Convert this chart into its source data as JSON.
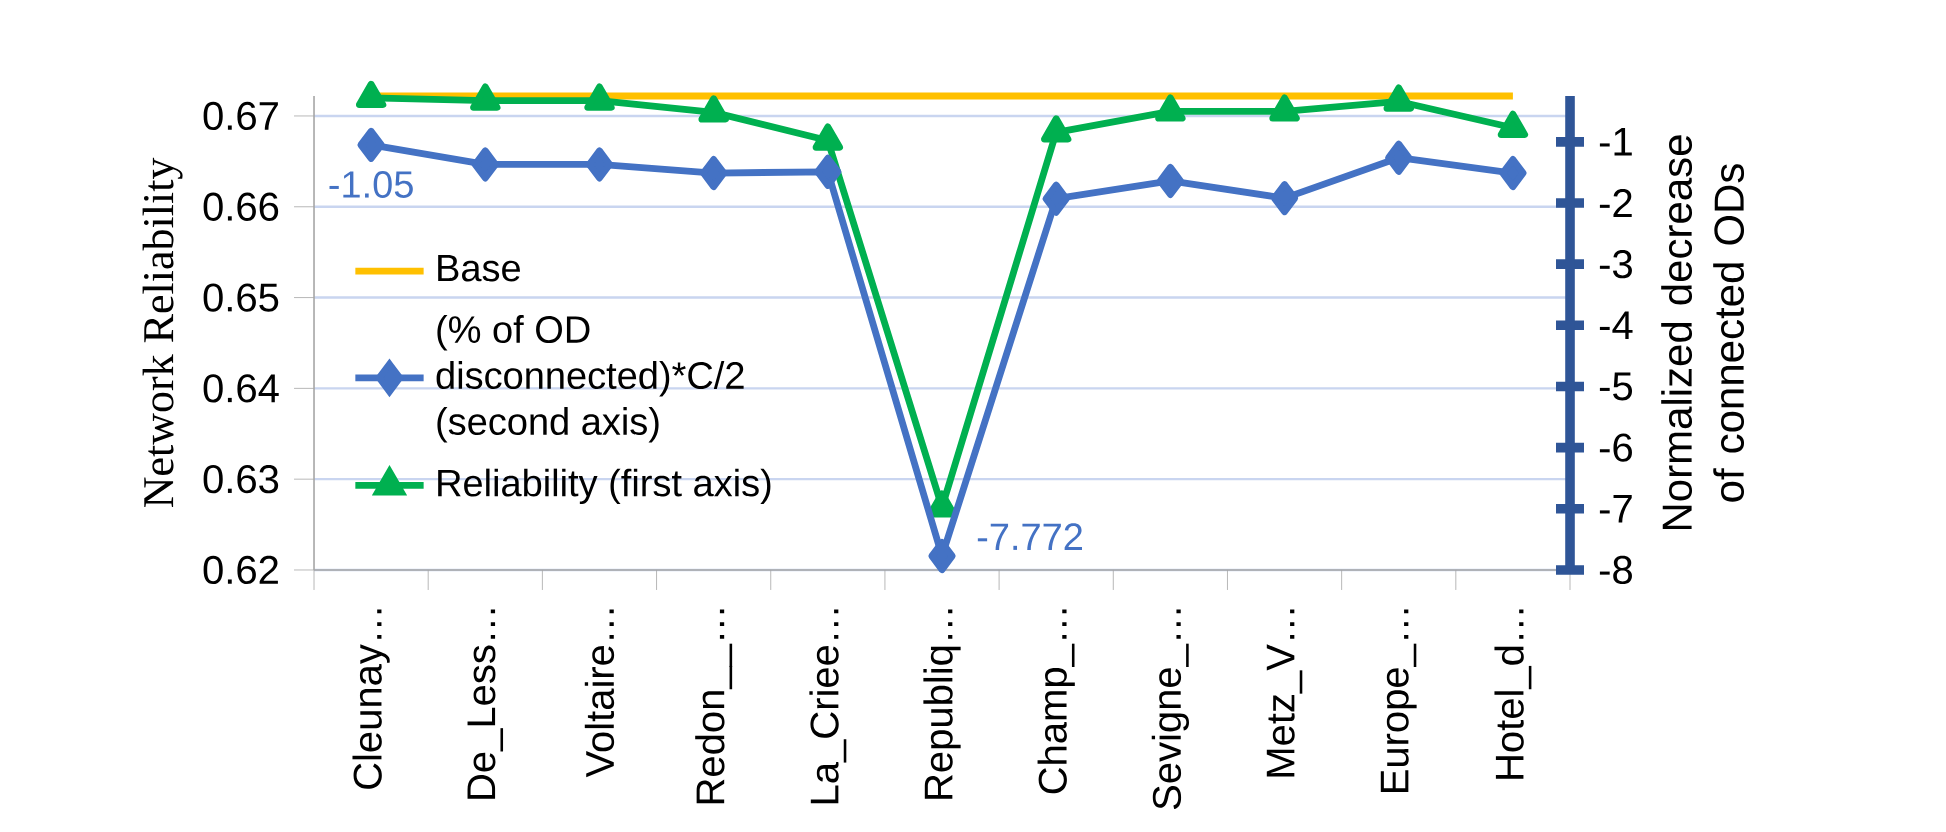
{
  "chart_data": {
    "type": "line",
    "categories": [
      "Cleunay…",
      "De_Less…",
      "Voltaire…",
      "Redon__…",
      "La_Criee…",
      "Republiq…",
      "Champ_…",
      "Sevigne_…",
      "Metz_V…",
      "Europe_…",
      "Hotel_d…"
    ],
    "ylabel": "Network Reliability",
    "y2label": "Normalized decrease  of connected ODs",
    "ylim": [
      0.62,
      0.6722
    ],
    "yticks": [
      0.62,
      0.63,
      0.64,
      0.65,
      0.66,
      0.67
    ],
    "y2lim": [
      -8,
      -0.25
    ],
    "y2ticks": [
      -8,
      -7,
      -6,
      -5,
      -4,
      -3,
      -2,
      -1
    ],
    "grid": "y",
    "legend": "left",
    "series": [
      {
        "name": "Base",
        "color": "#ffc000",
        "marker": "none",
        "values": [
          0.6722,
          0.6722,
          0.6722,
          0.6722,
          0.6722,
          0.6722,
          0.6722,
          0.6722,
          0.6722,
          0.6722,
          0.6722
        ]
      },
      {
        "name": "(% of OD disconnected)*C/2 (second axis)",
        "color": "#4472c4",
        "marker": "diamond",
        "axis": "y2",
        "values": [
          -1.05,
          -1.37,
          -1.37,
          -1.51,
          -1.49,
          -7.772,
          -1.93,
          -1.64,
          -1.92,
          -1.26,
          -1.51
        ],
        "value_labels": [
          "-1.05",
          null,
          null,
          null,
          null,
          "-7.772",
          null,
          null,
          null,
          null,
          null
        ]
      },
      {
        "name": "Reliability (first axis)",
        "color": "#00b050",
        "marker": "triangle",
        "values": [
          0.672,
          0.6717,
          0.6717,
          0.6704,
          0.6673,
          0.6269,
          0.6682,
          0.6705,
          0.6705,
          0.6716,
          0.6687
        ]
      }
    ]
  }
}
